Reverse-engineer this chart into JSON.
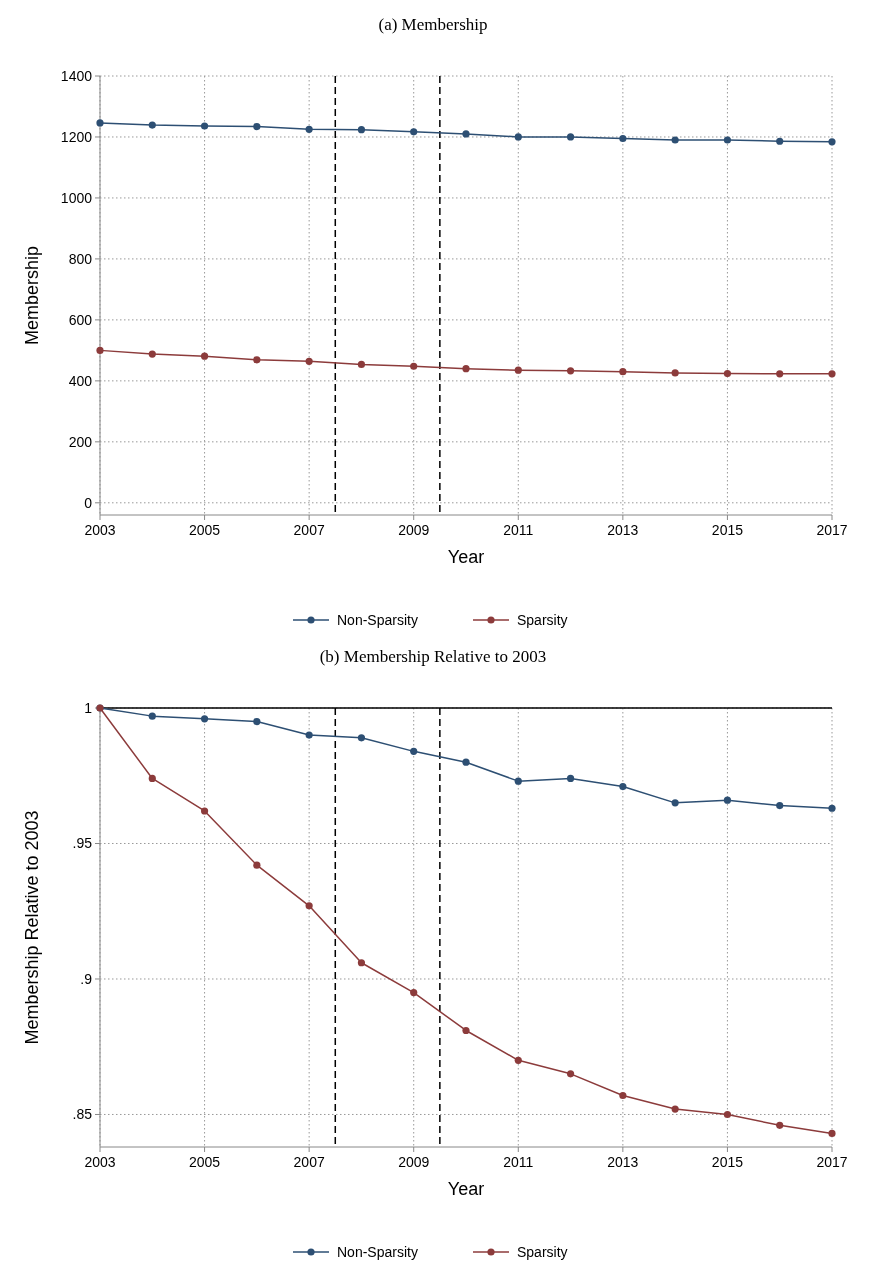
{
  "chart_data": [
    {
      "type": "line",
      "title": "(a) Membership",
      "xlabel": "Year",
      "ylabel": "Membership",
      "x": [
        2003,
        2004,
        2005,
        2006,
        2007,
        2008,
        2009,
        2010,
        2011,
        2012,
        2013,
        2014,
        2015,
        2016,
        2017
      ],
      "series": [
        {
          "name": "Non-Sparsity",
          "color": "#2d4f73",
          "values": [
            1246,
            1239,
            1236,
            1234,
            1225,
            1224,
            1217,
            1210,
            1200,
            1200,
            1195,
            1190,
            1190,
            1186,
            1184
          ]
        },
        {
          "name": "Sparsity",
          "color": "#8c3b3b",
          "values": [
            500,
            488,
            481,
            469,
            464,
            454,
            448,
            440,
            435,
            433,
            430,
            426,
            424,
            423,
            423
          ]
        }
      ],
      "xlim": [
        2003,
        2017
      ],
      "xticks": [
        2003,
        2005,
        2007,
        2009,
        2011,
        2013,
        2015,
        2017
      ],
      "ylim": [
        -40,
        1400
      ],
      "yticks": [
        0,
        200,
        400,
        600,
        800,
        1000,
        1200,
        1400
      ],
      "grid": true,
      "legend": "bottom",
      "marker": "circle",
      "line_style": "solid",
      "ref_lines": [
        {
          "axis": "x",
          "value": 2007.5,
          "color": "#000000",
          "line_style": "dashed"
        },
        {
          "axis": "x",
          "value": 2009.5,
          "color": "#000000",
          "line_style": "dashed"
        }
      ]
    },
    {
      "type": "line",
      "title": "(b) Membership Relative to 2003",
      "xlabel": "Year",
      "ylabel": "Membership Relative to 2003",
      "x": [
        2003,
        2004,
        2005,
        2006,
        2007,
        2008,
        2009,
        2010,
        2011,
        2012,
        2013,
        2014,
        2015,
        2016,
        2017
      ],
      "series": [
        {
          "name": "Non-Sparsity",
          "color": "#2d4f73",
          "values": [
            1,
            0.997,
            0.996,
            0.995,
            0.99,
            0.989,
            0.984,
            0.98,
            0.973,
            0.974,
            0.971,
            0.965,
            0.966,
            0.964,
            0.963
          ]
        },
        {
          "name": "Sparsity",
          "color": "#8c3b3b",
          "values": [
            1,
            0.974,
            0.962,
            0.942,
            0.927,
            0.906,
            0.895,
            0.881,
            0.87,
            0.865,
            0.857,
            0.852,
            0.85,
            0.846,
            0.843
          ]
        }
      ],
      "xlim": [
        2003,
        2017
      ],
      "xticks": [
        2003,
        2005,
        2007,
        2009,
        2011,
        2013,
        2015,
        2017
      ],
      "ylim": [
        0.838,
        1
      ],
      "yticks": [
        {
          "value": 0.85,
          "label": ".85"
        },
        {
          "value": 0.9,
          "label": ".9"
        },
        {
          "value": 0.95,
          "label": ".95"
        },
        1
      ],
      "grid": true,
      "legend": "bottom",
      "marker": "circle",
      "line_style": "solid",
      "ref_lines": [
        {
          "axis": "y",
          "value": 1,
          "color": "#000000",
          "line_style": "solid"
        },
        {
          "axis": "x",
          "value": 2007.5,
          "color": "#000000",
          "line_style": "dashed"
        },
        {
          "axis": "x",
          "value": 2009.5,
          "color": "#000000",
          "line_style": "dashed"
        }
      ]
    }
  ]
}
